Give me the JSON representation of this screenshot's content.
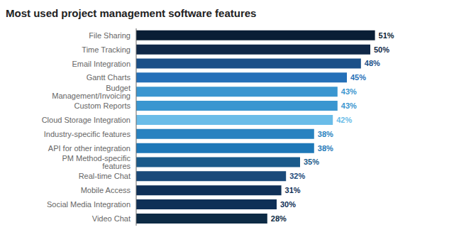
{
  "chart_data": {
    "type": "bar",
    "title": "Most used project management software features",
    "orientation": "horizontal",
    "categories": [
      "Video Chat",
      "Social Media Integration",
      "Mobile Access",
      "Real-time Chat",
      "PM Method-specific features",
      "API for other integration",
      "Industry-specific features",
      "Cloud Storage Integration",
      "Custom Reports",
      "Budget Management/Invoicing",
      "Gantt Charts",
      "Email Integration",
      "Time Tracking",
      "File Sharing"
    ],
    "values": [
      28,
      30,
      31,
      32,
      35,
      38,
      38,
      42,
      43,
      43,
      45,
      48,
      50,
      51
    ],
    "value_labels": [
      "28%",
      "30%",
      "31%",
      "32%",
      "35%",
      "38%",
      "38%",
      "42%",
      "43%",
      "43%",
      "45%",
      "48%",
      "50%",
      "51%"
    ],
    "colors": [
      "#0d2b45",
      "#0f3057",
      "#0f3057",
      "#1a4a7a",
      "#1a5a8a",
      "#1e78b8",
      "#2882c0",
      "#6abce8",
      "#3a96d0",
      "#3a96d0",
      "#2570b8",
      "#1a4f88",
      "#102848",
      "#0a1e35"
    ],
    "xlim": [
      0,
      60
    ],
    "data_labels": true,
    "tick_labels": "y",
    "grid": false
  }
}
